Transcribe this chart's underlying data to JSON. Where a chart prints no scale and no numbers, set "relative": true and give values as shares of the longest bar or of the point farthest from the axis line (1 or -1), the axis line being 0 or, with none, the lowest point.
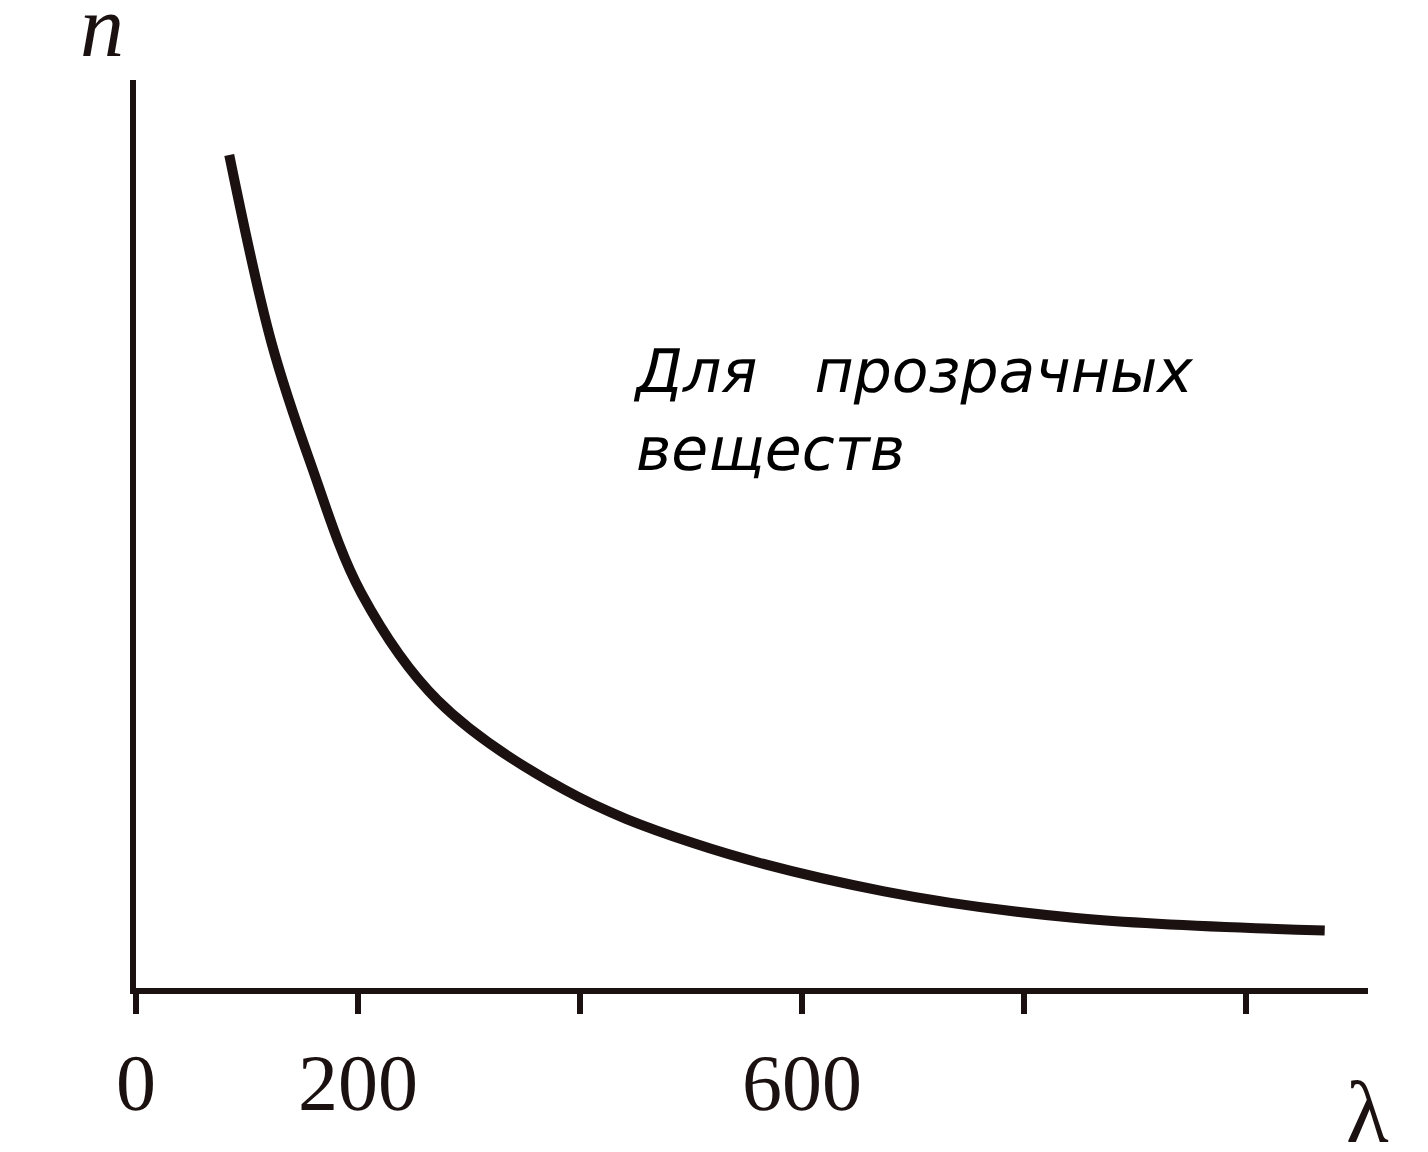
{
  "chart_data": {
    "type": "line",
    "relative": true,
    "xlabel": "λ",
    "ylabel": "n",
    "x": [
      84,
      122,
      157,
      203,
      272,
      386,
      502,
      674,
      847,
      1071
    ],
    "series": [
      {
        "color": "#1a1110",
        "values": [
          1.0,
          0.775,
          0.631,
          0.474,
          0.345,
          0.238,
          0.174,
          0.116,
          0.084,
          0.069
        ]
      }
    ],
    "xlim": [
      0,
      1110
    ],
    "xticks": [
      0,
      200,
      {
        "value": 400,
        "label": null
      },
      600,
      {
        "value": 800,
        "label": null
      },
      {
        "value": 1000,
        "label": null
      }
    ],
    "annotations": [
      "Для   прозрачных\nвеществ"
    ],
    "marker": "none",
    "line_style": "solid"
  }
}
